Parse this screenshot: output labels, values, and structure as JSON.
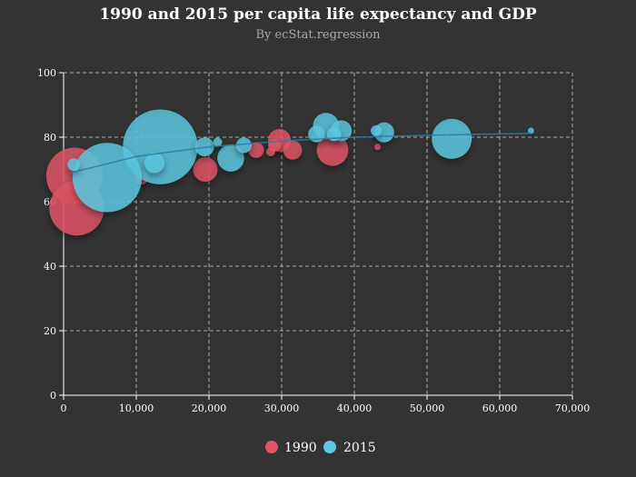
{
  "chart_data": {
    "type": "scatter",
    "title": "1990 and 2015 per capita life expectancy and GDP",
    "subtitle": "By ecStat.regression",
    "xlabel": "",
    "ylabel": "",
    "xlim": [
      0,
      70000
    ],
    "ylim": [
      0,
      100
    ],
    "x_ticks": [
      "0",
      "10,000",
      "20,000",
      "30,000",
      "40,000",
      "50,000",
      "60,000",
      "70,000"
    ],
    "y_ticks": [
      "0",
      "20",
      "40",
      "60",
      "80",
      "100"
    ],
    "grid": true,
    "legend_position": "bottom",
    "colors": {
      "1990": "#e05565",
      "2015": "#5bc8e0",
      "background": "#333333",
      "grid": "#aaaaaa",
      "trend": "#2b7da6"
    },
    "series": [
      {
        "name": "1990",
        "points": [
          {
            "x": 1500,
            "y": 68,
            "size": 8
          },
          {
            "x": 1800,
            "y": 58,
            "size": 7.5
          },
          {
            "x": 10700,
            "y": 67.5,
            "size": 0.5
          },
          {
            "x": 19500,
            "y": 70,
            "size": 1.5
          },
          {
            "x": 26500,
            "y": 76,
            "size": 0.6
          },
          {
            "x": 28500,
            "y": 75.5,
            "size": 0.2
          },
          {
            "x": 29700,
            "y": 79,
            "size": 1.3
          },
          {
            "x": 29000,
            "y": 77.5,
            "size": 0.4
          },
          {
            "x": 31500,
            "y": 76,
            "size": 0.9
          },
          {
            "x": 37000,
            "y": 76,
            "size": 2.5
          },
          {
            "x": 43200,
            "y": 77,
            "size": 0.1
          }
        ]
      },
      {
        "name": "2015",
        "points": [
          {
            "x": 1400,
            "y": 71.5,
            "size": 0.4
          },
          {
            "x": 6000,
            "y": 67.5,
            "size": 12
          },
          {
            "x": 12500,
            "y": 72,
            "size": 1
          },
          {
            "x": 13300,
            "y": 77,
            "size": 14
          },
          {
            "x": 19400,
            "y": 77,
            "size": 0.9
          },
          {
            "x": 21200,
            "y": 78.5,
            "size": 0.2
          },
          {
            "x": 23000,
            "y": 73.5,
            "size": 1.8
          },
          {
            "x": 24800,
            "y": 77.5,
            "size": 0.6
          },
          {
            "x": 34800,
            "y": 81,
            "size": 0.7
          },
          {
            "x": 36100,
            "y": 83.5,
            "size": 1.7
          },
          {
            "x": 37200,
            "y": 81,
            "size": 0.5
          },
          {
            "x": 38200,
            "y": 82,
            "size": 1.1
          },
          {
            "x": 43000,
            "y": 82,
            "size": 0.3
          },
          {
            "x": 44100,
            "y": 81.5,
            "size": 1
          },
          {
            "x": 53400,
            "y": 79.5,
            "size": 4
          },
          {
            "x": 64300,
            "y": 82,
            "size": 0.1
          }
        ]
      }
    ],
    "trendline": [
      {
        "x": 1000,
        "y": 69
      },
      {
        "x": 10000,
        "y": 74
      },
      {
        "x": 20000,
        "y": 77
      },
      {
        "x": 30000,
        "y": 78.8
      },
      {
        "x": 40000,
        "y": 80
      },
      {
        "x": 50000,
        "y": 80.6
      },
      {
        "x": 64300,
        "y": 81.2
      }
    ]
  }
}
